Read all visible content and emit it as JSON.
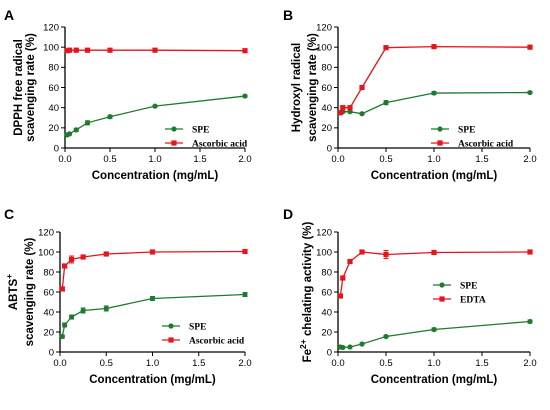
{
  "colors": {
    "green": "#1e7b2e",
    "red": "#e8141c"
  },
  "chart_data": [
    {
      "panel": "A",
      "type": "line",
      "xlabel": "Concentration (mg/mL)",
      "ylabel": [
        "DPPH free radical",
        "scavenging rate (%)"
      ],
      "xlim": [
        0,
        2.0
      ],
      "ylim": [
        0,
        120
      ],
      "xticks": [
        "0.0",
        "0.5",
        "1.0",
        "1.5",
        "2.0"
      ],
      "yticks": [
        "0",
        "20",
        "40",
        "60",
        "80",
        "100",
        "120"
      ],
      "legend_position": "lower-center-right",
      "series": [
        {
          "name": "SPE",
          "color": "green",
          "marker": "circle",
          "x": [
            0.025,
            0.05,
            0.125,
            0.25,
            0.5,
            1.0,
            2.0
          ],
          "y": [
            13,
            14,
            18,
            25,
            31,
            41.5,
            51.5
          ],
          "err": [
            1,
            1,
            1.5,
            2,
            1.5,
            1,
            1
          ]
        },
        {
          "name": "Ascorbic acid",
          "color": "red",
          "marker": "square",
          "x": [
            0.025,
            0.05,
            0.125,
            0.25,
            0.5,
            1.0,
            2.0
          ],
          "y": [
            96.5,
            97,
            97,
            97,
            97,
            97,
            96.5
          ],
          "err": [
            0.5,
            0.5,
            0.5,
            0.5,
            0.5,
            0.5,
            0.5
          ]
        }
      ]
    },
    {
      "panel": "B",
      "type": "line",
      "xlabel": "Concentration (mg/mL)",
      "ylabel": [
        "Hydroxyl radical",
        "scavenging rate (%)"
      ],
      "xlim": [
        0,
        2.0
      ],
      "ylim": [
        0,
        120
      ],
      "xticks": [
        "0.0",
        "0.5",
        "1.0",
        "1.5",
        "2.0"
      ],
      "yticks": [
        "0",
        "20",
        "40",
        "60",
        "80",
        "100",
        "120"
      ],
      "legend_position": "lower-center-right",
      "series": [
        {
          "name": "SPE",
          "color": "green",
          "marker": "circle",
          "x": [
            0.025,
            0.05,
            0.125,
            0.25,
            0.5,
            1.0,
            2.0
          ],
          "y": [
            35,
            36,
            36,
            34,
            45,
            54.5,
            55
          ],
          "err": [
            1,
            1,
            1,
            1,
            2,
            1.5,
            1
          ]
        },
        {
          "name": "Ascorbic acid",
          "color": "red",
          "marker": "square",
          "x": [
            0.025,
            0.05,
            0.125,
            0.25,
            0.5,
            1.0,
            2.0
          ],
          "y": [
            35,
            40,
            40,
            60,
            99.5,
            100.5,
            100
          ],
          "err": [
            1,
            1,
            1,
            1,
            0.5,
            0.5,
            0.5
          ]
        }
      ]
    },
    {
      "panel": "C",
      "type": "line",
      "xlabel": "Concentration (mg/mL)",
      "ylabel": [
        "ABTS",
        "scavenging rate (%)"
      ],
      "ylabel_sup": "+",
      "xlim": [
        0,
        2.0
      ],
      "ylim": [
        0,
        120
      ],
      "xticks": [
        "0.0",
        "0.5",
        "1.0",
        "1.5",
        "2.0"
      ],
      "yticks": [
        "0",
        "20",
        "40",
        "60",
        "80",
        "100",
        "120"
      ],
      "legend_position": "lower-center-right",
      "series": [
        {
          "name": "SPE",
          "color": "green",
          "marker": "circle",
          "x": [
            0.025,
            0.05,
            0.125,
            0.25,
            0.5,
            1.0,
            2.0
          ],
          "y": [
            15.5,
            27,
            35,
            41.5,
            43.5,
            53.5,
            57.5
          ],
          "err": [
            1.5,
            2,
            2,
            2.5,
            2.5,
            2,
            2
          ]
        },
        {
          "name": "Ascorbic acid",
          "color": "red",
          "marker": "square",
          "x": [
            0.025,
            0.05,
            0.125,
            0.25,
            0.5,
            1.0,
            2.0
          ],
          "y": [
            63,
            86,
            92.5,
            95,
            98,
            100,
            100.5
          ],
          "err": [
            2,
            1.5,
            3.5,
            2,
            1,
            1,
            1
          ]
        }
      ]
    },
    {
      "panel": "D",
      "type": "line",
      "xlabel": "Concentration (mg/mL)",
      "ylabel_pre": "Fe",
      "ylabel_sup": "2+",
      "ylabel_post": " chelating activity (%)",
      "xlim": [
        0,
        2.0
      ],
      "ylim": [
        0,
        120
      ],
      "xticks": [
        "0.0",
        "0.5",
        "1.0",
        "1.5",
        "2.0"
      ],
      "yticks": [
        "0",
        "20",
        "40",
        "60",
        "80",
        "100",
        "120"
      ],
      "legend_position": "center-right",
      "series": [
        {
          "name": "SPE",
          "color": "green",
          "marker": "circle",
          "x": [
            0.025,
            0.05,
            0.125,
            0.25,
            0.5,
            1.0,
            2.0
          ],
          "y": [
            5,
            4.5,
            5,
            8,
            15.5,
            22.5,
            30.5
          ],
          "err": [
            0.5,
            0.5,
            0.5,
            1,
            1,
            1.5,
            1.5
          ]
        },
        {
          "name": "EDTA",
          "color": "red",
          "marker": "square",
          "x": [
            0.025,
            0.05,
            0.125,
            0.25,
            0.5,
            1.0,
            2.0
          ],
          "y": [
            56,
            74,
            90.5,
            100,
            97.5,
            99.5,
            100
          ],
          "err": [
            2,
            2,
            1.5,
            1,
            4,
            0.5,
            0.5
          ]
        }
      ]
    }
  ]
}
